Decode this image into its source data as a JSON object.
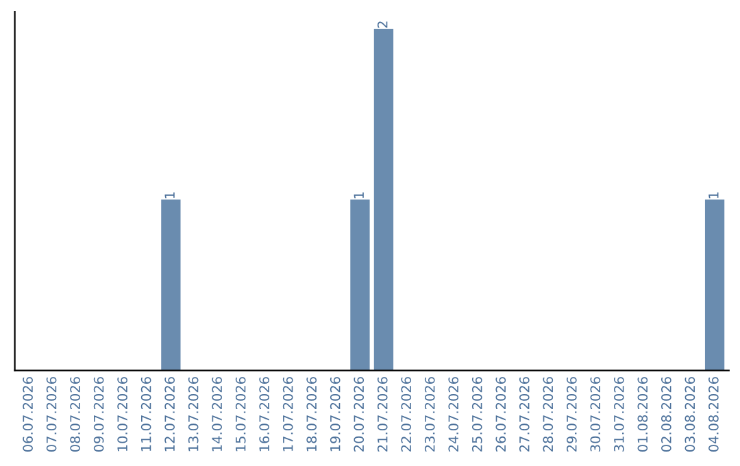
{
  "chart_data": {
    "type": "bar",
    "categories": [
      "06.07.2026",
      "07.07.2026",
      "08.07.2026",
      "09.07.2026",
      "10.07.2026",
      "11.07.2026",
      "12.07.2026",
      "13.07.2026",
      "14.07.2026",
      "15.07.2026",
      "16.07.2026",
      "17.07.2026",
      "18.07.2026",
      "19.07.2026",
      "20.07.2026",
      "21.07.2026",
      "22.07.2026",
      "23.07.2026",
      "24.07.2026",
      "25.07.2026",
      "26.07.2026",
      "27.07.2026",
      "28.07.2026",
      "29.07.2026",
      "30.07.2026",
      "31.07.2026",
      "01.08.2026",
      "02.08.2026",
      "03.08.2026",
      "04.08.2026"
    ],
    "values": [
      0,
      0,
      0,
      0,
      0,
      0,
      1,
      0,
      0,
      0,
      0,
      0,
      0,
      0,
      1,
      2,
      0,
      0,
      0,
      0,
      0,
      0,
      0,
      0,
      0,
      0,
      0,
      0,
      0,
      1
    ],
    "value_labels": [
      null,
      null,
      null,
      null,
      null,
      null,
      "1",
      null,
      null,
      null,
      null,
      null,
      null,
      null,
      "1",
      "2",
      null,
      null,
      null,
      null,
      null,
      null,
      null,
      null,
      null,
      null,
      null,
      null,
      null,
      "1"
    ],
    "color": "#6a8caf",
    "tick_labels": "x",
    "grid": false,
    "legend": false
  }
}
